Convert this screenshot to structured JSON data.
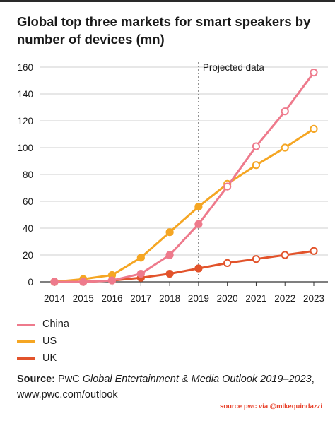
{
  "title": "Global top three markets for smart speakers by number of devices (mn)",
  "annotation": "Projected data",
  "source": {
    "label": "Source:",
    "publisher": "PwC",
    "publication": "Global Entertainment & Media Outlook 2019–2023",
    "url": "www.pwc.com/outlook"
  },
  "credit": "source pwc via @mikequindazzi",
  "chart_data": {
    "type": "line",
    "title": "Global top three markets for smart speakers by number of devices (mn)",
    "x": [
      2014,
      2015,
      2016,
      2017,
      2018,
      2019,
      2020,
      2021,
      2022,
      2023
    ],
    "ylim": [
      0,
      160
    ],
    "yticks": [
      0,
      20,
      40,
      60,
      80,
      100,
      120,
      140,
      160
    ],
    "grid": "horizontal",
    "projection_start": 2019,
    "legend_position": "bottom-left",
    "series": [
      {
        "name": "China",
        "color": "#ee7a8c",
        "values": [
          0,
          0,
          1,
          6,
          20,
          43,
          71,
          101,
          127,
          156
        ]
      },
      {
        "name": "US",
        "color": "#f5a623",
        "values": [
          0,
          2,
          5,
          18,
          37,
          56,
          73,
          87,
          100,
          114
        ]
      },
      {
        "name": "UK",
        "color": "#e2532b",
        "values": [
          0,
          0,
          1,
          3,
          6,
          10,
          14,
          17,
          20,
          23
        ]
      }
    ]
  }
}
